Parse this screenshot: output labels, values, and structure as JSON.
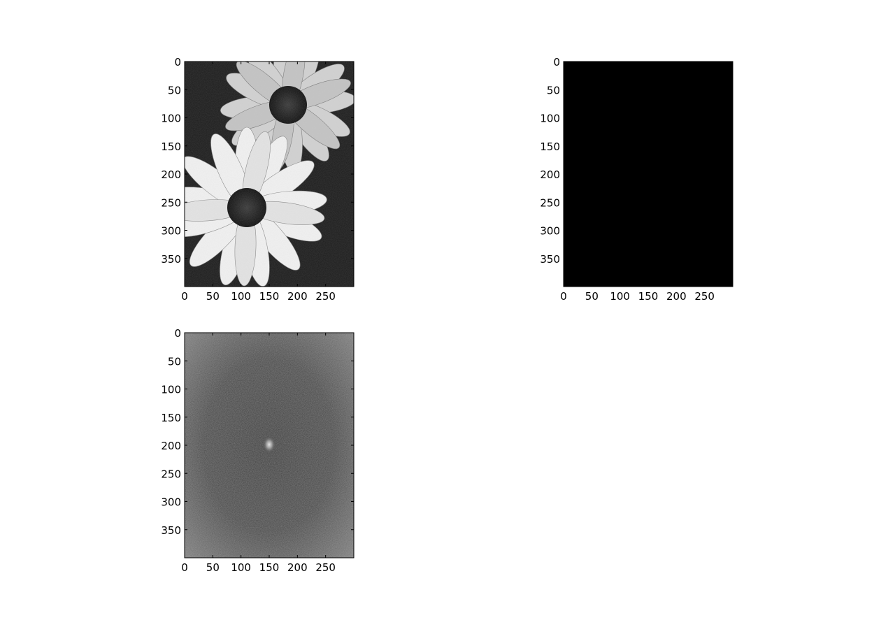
{
  "figure": {
    "background": "#ffffff",
    "layout": "2x2 grid of image subplots, bottom-right cell empty"
  },
  "chart_data": [
    {
      "type": "heatmap",
      "subplot": "top-left",
      "image_description": "grayscale photograph of two white daisy flowers with dark centers on a dark background",
      "colormap": "gray",
      "image_size": {
        "rows": 400,
        "cols": 300
      },
      "xlim": [
        0,
        300
      ],
      "ylim": [
        400,
        0
      ],
      "x_ticks": [
        0,
        50,
        100,
        150,
        200,
        250
      ],
      "y_ticks": [
        0,
        50,
        100,
        150,
        200,
        250,
        300,
        350
      ],
      "title": "",
      "xlabel": "",
      "ylabel": ""
    },
    {
      "type": "heatmap",
      "subplot": "top-right",
      "image_description": "uniformly black image",
      "colormap": "gray",
      "fill_color": "#000000",
      "image_size": {
        "rows": 400,
        "cols": 300
      },
      "xlim": [
        0,
        300
      ],
      "ylim": [
        400,
        0
      ],
      "x_ticks": [
        0,
        50,
        100,
        150,
        200,
        250
      ],
      "y_ticks": [
        0,
        50,
        100,
        150,
        200,
        250,
        300,
        350
      ],
      "title": "",
      "xlabel": "",
      "ylabel": ""
    },
    {
      "type": "heatmap",
      "subplot": "bottom-left",
      "image_description": "log-magnitude Fourier spectrum: mid-gray noisy texture, brighter toward the corners, with a bright point at the center",
      "colormap": "gray",
      "bright_peak": {
        "x": 150,
        "y": 200
      },
      "image_size": {
        "rows": 400,
        "cols": 300
      },
      "xlim": [
        0,
        300
      ],
      "ylim": [
        400,
        0
      ],
      "x_ticks": [
        0,
        50,
        100,
        150,
        200,
        250
      ],
      "y_ticks": [
        0,
        50,
        100,
        150,
        200,
        250,
        300,
        350
      ],
      "title": "",
      "xlabel": "",
      "ylabel": ""
    }
  ]
}
